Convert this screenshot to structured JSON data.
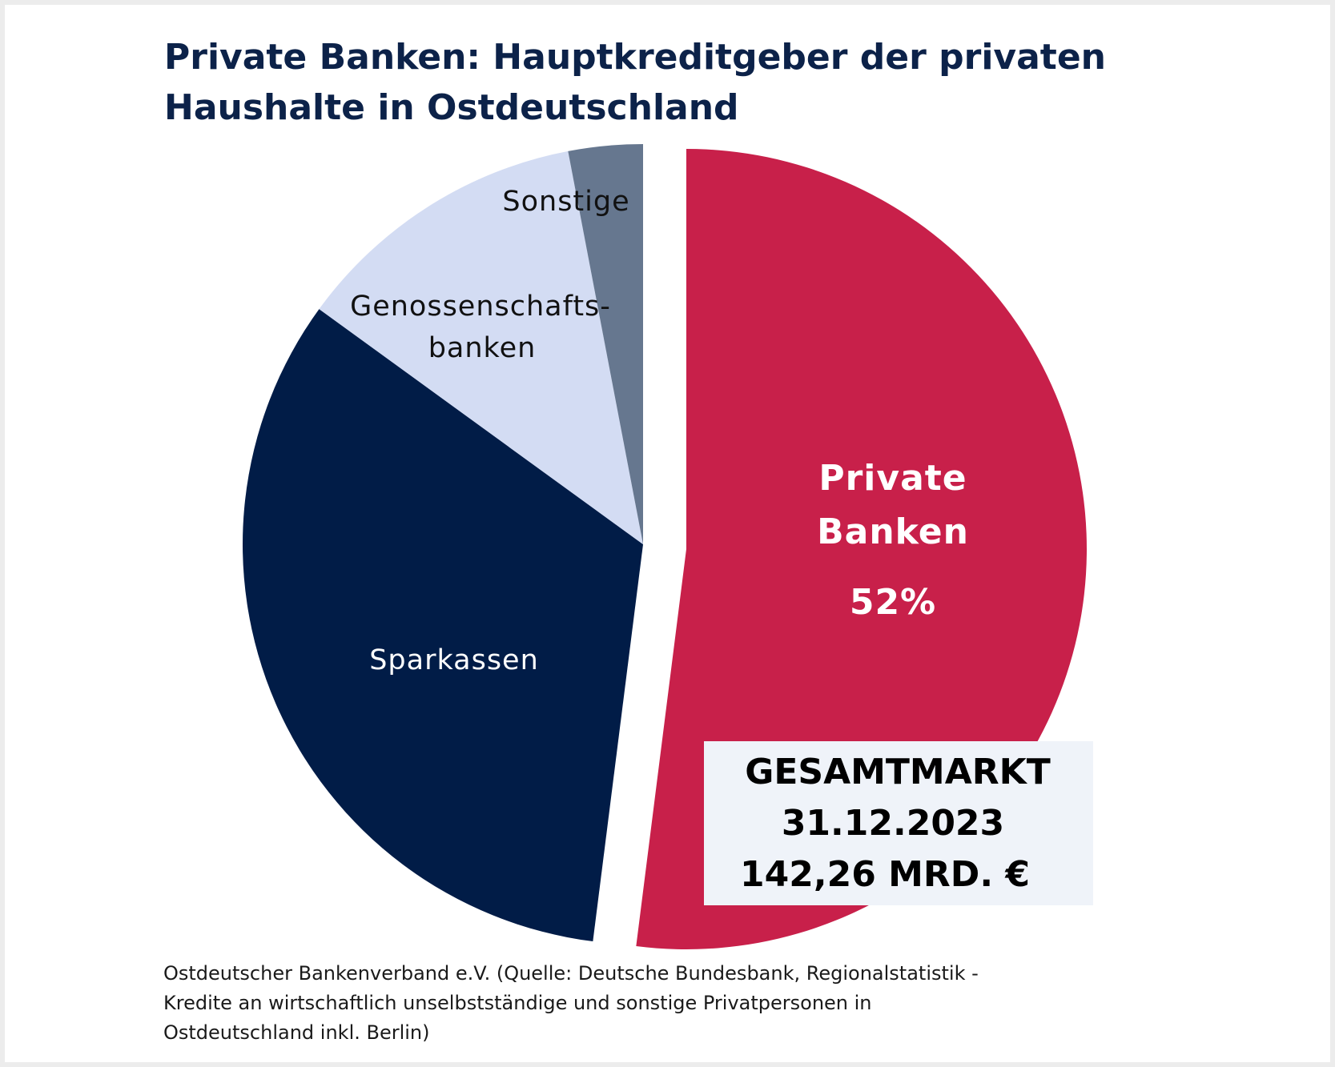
{
  "chart_data": {
    "type": "pie",
    "title_lines": [
      "Private Banken: Hauptkreditgeber der privaten",
      "Haushalte in Ostdeutschland"
    ],
    "slices": [
      {
        "name": "Private Banken",
        "value": 52,
        "label_lines": [
          "Private",
          "Banken"
        ],
        "value_label": "52%",
        "color": "#c8204a",
        "exploded": true
      },
      {
        "name": "Sparkassen",
        "value": 33,
        "label_lines": [
          "Sparkassen"
        ],
        "color": "#011c47"
      },
      {
        "name": "Genossenschaftsbanken",
        "value": 12,
        "label_lines": [
          "Genossenschafts-",
          "banken"
        ],
        "color": "#d3dcf3"
      },
      {
        "name": "Sonstige",
        "value": 3,
        "label_lines": [
          "Sonstige"
        ],
        "color": "#66778f"
      }
    ],
    "annotation": {
      "lines": [
        "GESAMTMARKT",
        "31.12.2023",
        "142,26 MRD. €"
      ],
      "background": "#eff3f9"
    },
    "source_lines": [
      "Ostdeutscher Bankenverband e.V. (Quelle: Deutsche Bundesbank, Regionalstatistik -",
      "Kredite an wirtschaftlich unselbstständige und sonstige Privatpersonen in",
      "Ostdeutschland inkl. Berlin)"
    ]
  }
}
